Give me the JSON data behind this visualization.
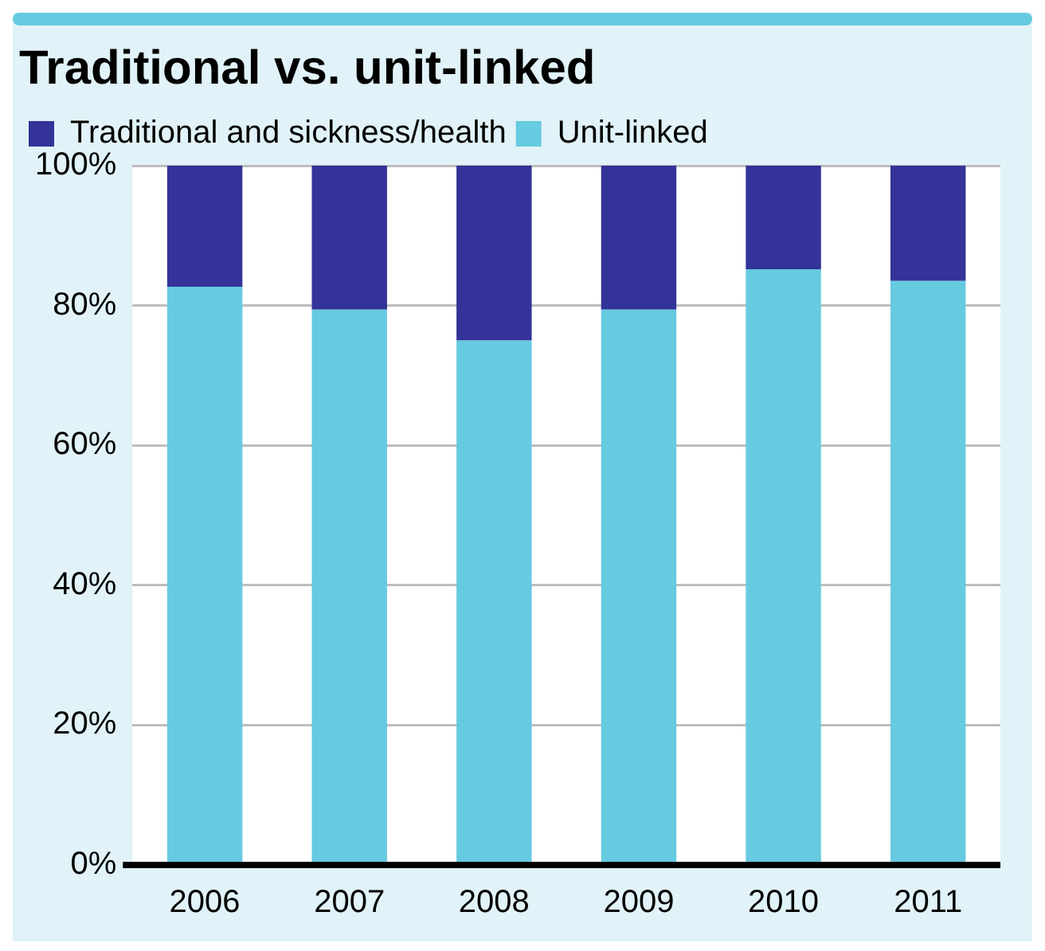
{
  "chart_data": {
    "type": "bar",
    "title": "Traditional vs. unit-linked",
    "categories": [
      "2006",
      "2007",
      "2008",
      "2009",
      "2010",
      "2011"
    ],
    "stacked": true,
    "series": [
      {
        "name": "Unit-linked",
        "color": "#66cae0",
        "values": [
          82.7,
          79.4,
          75,
          79.4,
          85.2,
          83.5
        ]
      },
      {
        "name": "Traditional and sickness/health",
        "color": "#333399",
        "values": [
          17.3,
          20.6,
          25,
          20.6,
          14.8,
          16.5
        ]
      }
    ],
    "ylim": [
      0,
      100
    ],
    "yticks": [
      {
        "value": 0,
        "label": "0%"
      },
      {
        "value": 20,
        "label": "20%"
      },
      {
        "value": 40,
        "label": "40%"
      },
      {
        "value": 60,
        "label": "60%"
      },
      {
        "value": 80,
        "label": "80%"
      },
      {
        "value": 100,
        "label": "100%"
      }
    ],
    "grid": "y",
    "legend": "top left"
  }
}
